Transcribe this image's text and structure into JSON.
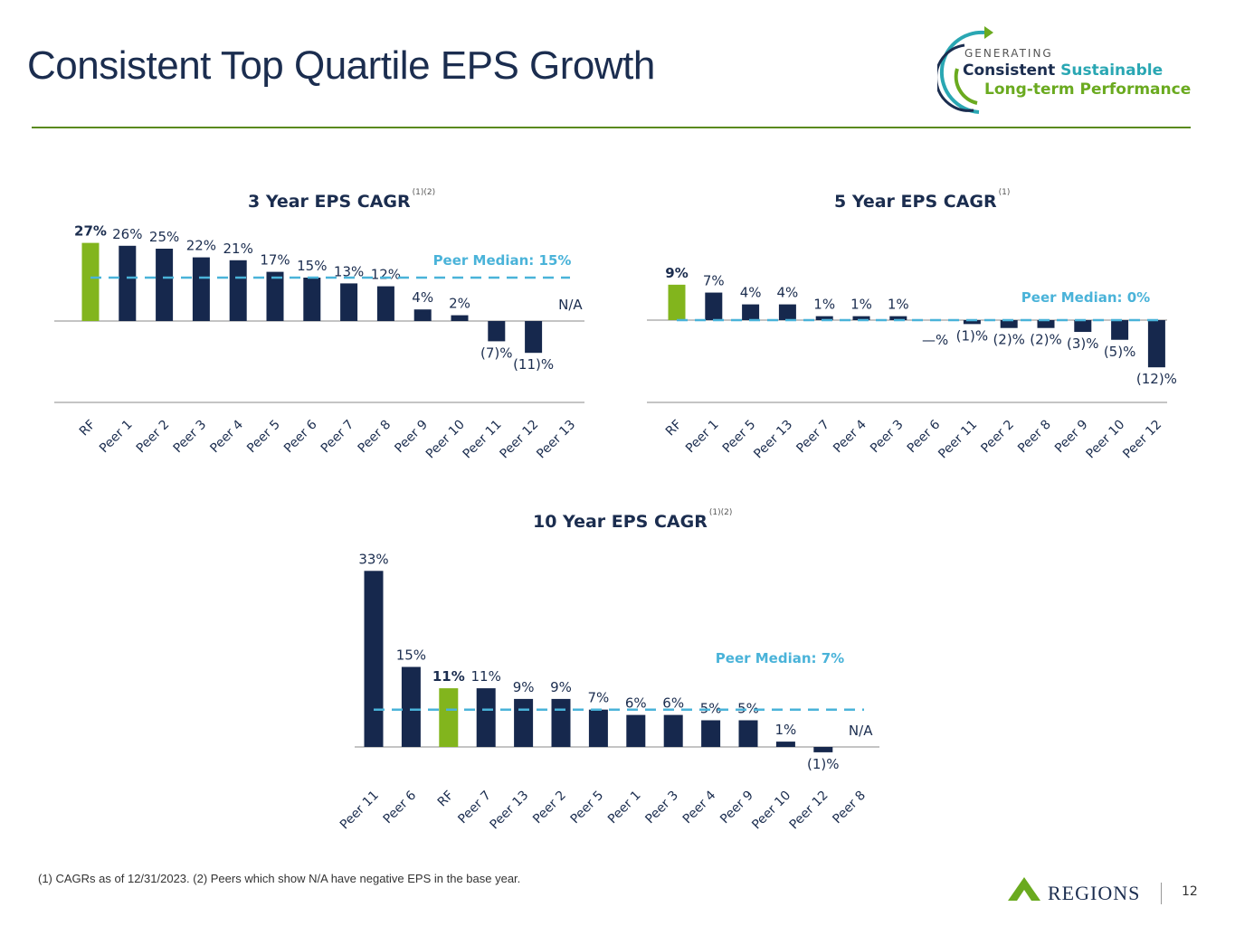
{
  "header": {
    "title": "Consistent Top Quartile EPS Growth"
  },
  "logo": {
    "top": "GENERATING",
    "line1a": "Consistent",
    "line1b": "Sustainable",
    "line2": "Long-term Performance"
  },
  "colors": {
    "navy": "#16284d",
    "green": "#82b51d",
    "median": "#4ab3d9",
    "axis": "#888888"
  },
  "chart_data": [
    {
      "type": "bar",
      "title": "3 Year EPS CAGR",
      "title_sup": "(1)(2)",
      "categories": [
        "RF",
        "Peer 1",
        "Peer 2",
        "Peer 3",
        "Peer 4",
        "Peer 5",
        "Peer 6",
        "Peer 7",
        "Peer 8",
        "Peer 9",
        "Peer 10",
        "Peer 11",
        "Peer 12",
        "Peer 13"
      ],
      "values": [
        27,
        26,
        25,
        22,
        21,
        17,
        15,
        13,
        12,
        4,
        2,
        -7,
        -11,
        null
      ],
      "labels": [
        "27%",
        "26%",
        "25%",
        "22%",
        "21%",
        "17%",
        "15%",
        "13%",
        "12%",
        "4%",
        "2%",
        "(7)%",
        "(11)%",
        "N/A"
      ],
      "highlight": "RF",
      "median": 15,
      "median_label": "Peer Median: 15%"
    },
    {
      "type": "bar",
      "title": "5 Year EPS CAGR",
      "title_sup": "(1)",
      "categories": [
        "RF",
        "Peer 1",
        "Peer 5",
        "Peer 13",
        "Peer 7",
        "Peer 4",
        "Peer 3",
        "Peer 6",
        "Peer 11",
        "Peer 2",
        "Peer 8",
        "Peer 9",
        "Peer 10",
        "Peer 12"
      ],
      "values": [
        9,
        7,
        4,
        4,
        1,
        1,
        1,
        0,
        -1,
        -2,
        -2,
        -3,
        -5,
        -12
      ],
      "labels": [
        "9%",
        "7%",
        "4%",
        "4%",
        "1%",
        "1%",
        "1%",
        "—%",
        "(1)%",
        "(2)%",
        "(2)%",
        "(3)%",
        "(5)%",
        "(12)%"
      ],
      "highlight": "RF",
      "median": 0,
      "median_label": "Peer Median: 0%"
    },
    {
      "type": "bar",
      "title": "10 Year EPS CAGR",
      "title_sup": "(1)(2)",
      "categories": [
        "Peer 11",
        "Peer 6",
        "RF",
        "Peer 7",
        "Peer 13",
        "Peer 2",
        "Peer 5",
        "Peer 1",
        "Peer 3",
        "Peer 4",
        "Peer 9",
        "Peer 10",
        "Peer 12",
        "Peer 8"
      ],
      "values": [
        33,
        15,
        11,
        11,
        9,
        9,
        7,
        6,
        6,
        5,
        5,
        1,
        -1,
        null
      ],
      "labels": [
        "33%",
        "15%",
        "11%",
        "11%",
        "9%",
        "9%",
        "7%",
        "6%",
        "6%",
        "5%",
        "5%",
        "1%",
        "(1)%",
        "N/A"
      ],
      "highlight": "RF",
      "median": 7,
      "median_label": "Peer Median: 7%"
    }
  ],
  "footer": {
    "footnote": "(1) CAGRs as of 12/31/2023. (2) Peers which show N/A have negative EPS in the base year.",
    "brand": "REGIONS",
    "page_number": "12"
  }
}
